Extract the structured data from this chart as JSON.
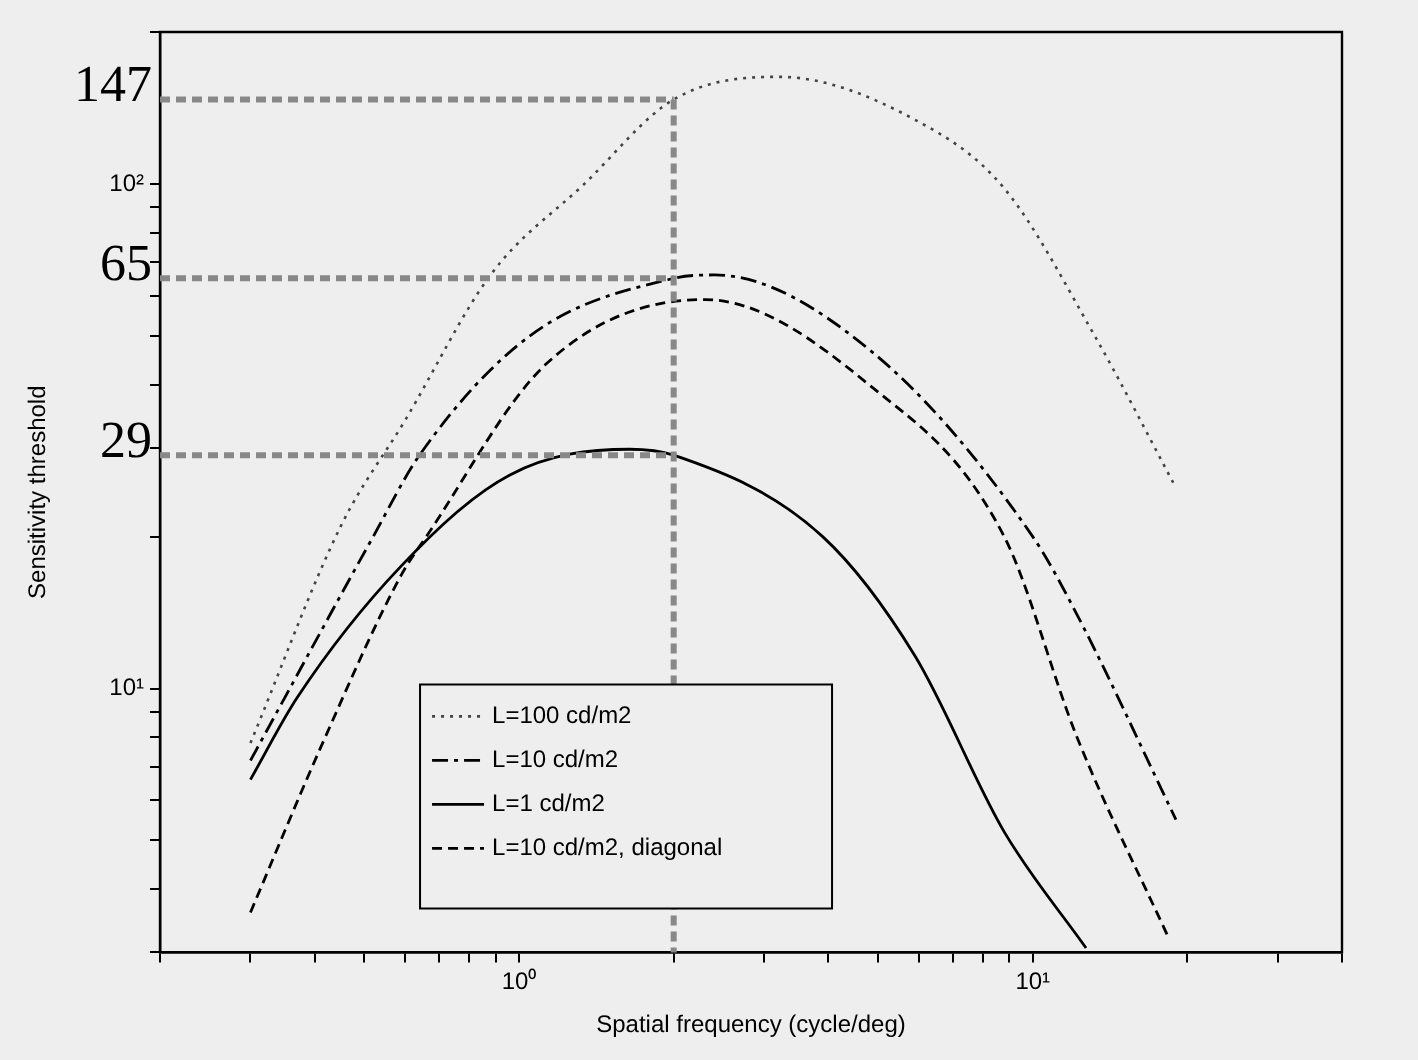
{
  "chart_data": {
    "type": "line",
    "xlabel": "Spatial frequency (cycle/deg)",
    "ylabel": "Sensitivity threshold",
    "log": "xy",
    "grid": false,
    "legend": "bottom left",
    "marker": "none",
    "xlim": [
      0.2,
      40
    ],
    "ylim": [
      3,
      200
    ],
    "xticks": [
      {
        "value": 0.2,
        "label": null
      },
      {
        "value": 0.3,
        "label": null
      },
      {
        "value": 0.4,
        "label": null
      },
      {
        "value": 0.5,
        "label": null
      },
      {
        "value": 0.6,
        "label": null
      },
      {
        "value": 0.7,
        "label": null
      },
      {
        "value": 0.8,
        "label": null
      },
      {
        "value": 0.9,
        "label": null
      },
      {
        "value": 1,
        "label": "10⁰"
      },
      {
        "value": 2,
        "label": null
      },
      {
        "value": 3,
        "label": null
      },
      {
        "value": 4,
        "label": null
      },
      {
        "value": 5,
        "label": null
      },
      {
        "value": 6,
        "label": null
      },
      {
        "value": 7,
        "label": null
      },
      {
        "value": 8,
        "label": null
      },
      {
        "value": 9,
        "label": null
      },
      {
        "value": 10,
        "label": "10¹"
      },
      {
        "value": 20,
        "label": null
      },
      {
        "value": 30,
        "label": null
      },
      {
        "value": 40,
        "label": null
      }
    ],
    "yticks": [
      {
        "value": 3,
        "label": null
      },
      {
        "value": 4,
        "label": null
      },
      {
        "value": 5,
        "label": null
      },
      {
        "value": 6,
        "label": null
      },
      {
        "value": 7,
        "label": null
      },
      {
        "value": 8,
        "label": null
      },
      {
        "value": 9,
        "label": null
      },
      {
        "value": 10,
        "label": "10¹"
      },
      {
        "value": 20,
        "label": null
      },
      {
        "value": 30,
        "label": null
      },
      {
        "value": 40,
        "label": null
      },
      {
        "value": 50,
        "label": null
      },
      {
        "value": 60,
        "label": null
      },
      {
        "value": 70,
        "label": null
      },
      {
        "value": 80,
        "label": null
      },
      {
        "value": 90,
        "label": null
      },
      {
        "value": 100,
        "label": "10²"
      },
      {
        "value": 200,
        "label": null
      }
    ],
    "series": [
      {
        "name": "L=100 cd/m2",
        "color": "#444444",
        "line_style": "dotted",
        "x": [
          0.3,
          0.45,
          0.6,
          0.88,
          1.34,
          2,
          3.2,
          5.9,
          8.8,
          13.2,
          19
        ],
        "values": [
          7.8,
          21,
          34,
          66,
          100,
          147,
          163,
          134,
          98,
          50,
          25
        ]
      },
      {
        "name": "L=10 cd/m2",
        "color": "#000000",
        "line_style": "dashdot",
        "x": [
          0.3,
          0.52,
          0.64,
          1.05,
          2,
          2.4,
          4.8,
          10,
          12.2,
          19
        ],
        "values": [
          7.2,
          20,
          29,
          50,
          65,
          66,
          47,
          20,
          14,
          5.5
        ]
      },
      {
        "name": "L=1 cd/m2",
        "color": "#000000",
        "line_style": "solid",
        "x": [
          0.3,
          0.37,
          0.59,
          0.96,
          1.64,
          2,
          3.9,
          5.9,
          8.8,
          12.7
        ],
        "values": [
          6.6,
          9.6,
          17.5,
          26.5,
          29.8,
          29,
          20,
          11.6,
          5.2,
          3.06
        ]
      },
      {
        "name": "L=10 cd/m2, diagonal",
        "color": "#000000",
        "line_style": "dashed",
        "x": [
          0.3,
          0.41,
          0.59,
          0.66,
          1.13,
          2.3,
          4.8,
          8.8,
          12.2,
          18.4
        ],
        "values": [
          3.6,
          7.6,
          16.8,
          20,
          44,
          59,
          40,
          20,
          8,
          3.2
        ]
      }
    ],
    "ref_lines": [
      {
        "axis": "x",
        "value": 2,
        "color": "#888888",
        "line_style": "dashed"
      },
      {
        "axis": "y",
        "value": 147,
        "label": "147",
        "color": "#888888",
        "line_style": "dashed"
      },
      {
        "axis": "y",
        "value": 65,
        "label": "65",
        "color": "#888888",
        "line_style": "dashed"
      },
      {
        "axis": "y",
        "value": 29,
        "label": "29",
        "color": "#888888",
        "line_style": "dashed"
      }
    ]
  }
}
